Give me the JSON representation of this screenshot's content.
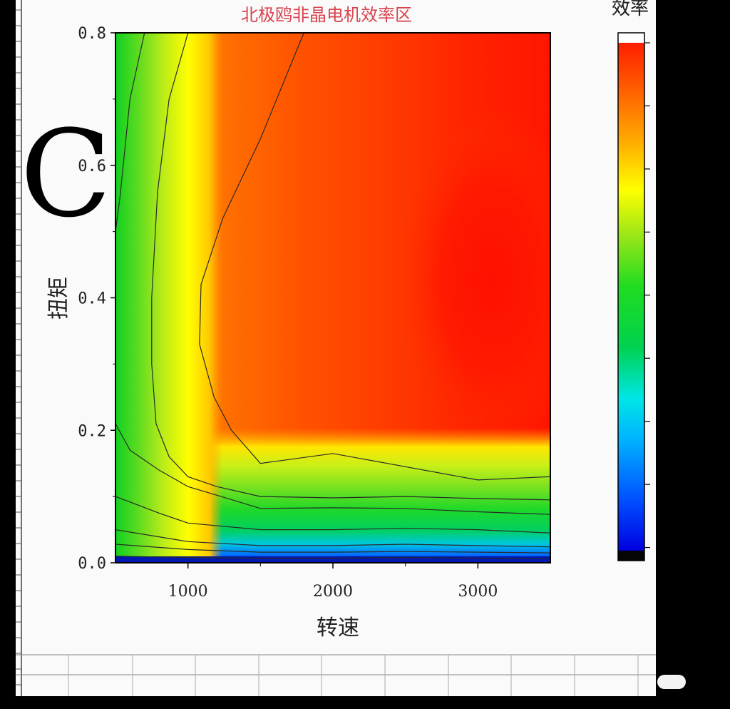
{
  "panel_label": "C",
  "colorbar_title": "效率",
  "chart_data": {
    "type": "contour",
    "title": "北极鸥非晶电机效率区",
    "xlabel": "转速",
    "ylabel": "扭矩",
    "xlim": [
      500,
      3500
    ],
    "ylim": [
      0,
      0.8
    ],
    "x_ticks": [
      1000,
      2000,
      3000
    ],
    "y_ticks": [
      0.0,
      0.2,
      0.4,
      0.6,
      0.8
    ],
    "x_tick_labels": [
      "1000",
      "2000",
      "3000"
    ],
    "y_tick_labels": [
      "0.0",
      "0.2",
      "0.4",
      "0.6",
      "0.8"
    ],
    "colormap": [
      "#000000",
      "#0000ff",
      "#0090ff",
      "#00e6e6",
      "#00d040",
      "#33e633",
      "#b4f02a",
      "#ffff00",
      "#ffa800",
      "#ff6a00",
      "#ff2000"
    ],
    "contour_lines": [
      {
        "points": [
          [
            500,
            0.01
          ],
          [
            1000,
            0.008
          ],
          [
            1500,
            0.007
          ],
          [
            2000,
            0.007
          ],
          [
            2500,
            0.008
          ],
          [
            3000,
            0.007
          ],
          [
            3500,
            0.006
          ]
        ]
      },
      {
        "points": [
          [
            500,
            0.028
          ],
          [
            1000,
            0.02
          ],
          [
            1500,
            0.016
          ],
          [
            2000,
            0.016
          ],
          [
            2500,
            0.017
          ],
          [
            3000,
            0.016
          ],
          [
            3500,
            0.015
          ]
        ]
      },
      {
        "points": [
          [
            500,
            0.05
          ],
          [
            1000,
            0.032
          ],
          [
            1500,
            0.026
          ],
          [
            2000,
            0.026
          ],
          [
            2500,
            0.028
          ],
          [
            3000,
            0.026
          ],
          [
            3500,
            0.024
          ]
        ]
      },
      {
        "points": [
          [
            500,
            0.1
          ],
          [
            800,
            0.075
          ],
          [
            1000,
            0.06
          ],
          [
            1500,
            0.05
          ],
          [
            2000,
            0.05
          ],
          [
            2500,
            0.052
          ],
          [
            3000,
            0.05
          ],
          [
            3500,
            0.045
          ]
        ]
      },
      {
        "points": [
          [
            500,
            0.21
          ],
          [
            600,
            0.17
          ],
          [
            800,
            0.14
          ],
          [
            1000,
            0.115
          ],
          [
            1200,
            0.102
          ],
          [
            1500,
            0.082
          ],
          [
            2000,
            0.083
          ],
          [
            2500,
            0.082
          ],
          [
            3000,
            0.077
          ],
          [
            3500,
            0.073
          ]
        ]
      },
      {
        "points": [
          [
            700,
            0.8
          ],
          [
            600,
            0.7
          ],
          [
            530,
            0.55
          ],
          [
            500,
            0.5
          ]
        ]
      },
      {
        "points": [
          [
            1000,
            0.8
          ],
          [
            870,
            0.7
          ],
          [
            790,
            0.56
          ],
          [
            750,
            0.4
          ],
          [
            750,
            0.3
          ],
          [
            780,
            0.21
          ],
          [
            870,
            0.16
          ],
          [
            1000,
            0.13
          ],
          [
            1200,
            0.115
          ],
          [
            1500,
            0.1
          ],
          [
            2000,
            0.098
          ],
          [
            2500,
            0.1
          ],
          [
            3000,
            0.097
          ],
          [
            3500,
            0.095
          ]
        ]
      },
      {
        "points": [
          [
            1800,
            0.8
          ],
          [
            1500,
            0.64
          ],
          [
            1240,
            0.52
          ],
          [
            1090,
            0.42
          ],
          [
            1080,
            0.33
          ],
          [
            1180,
            0.25
          ],
          [
            1300,
            0.2
          ],
          [
            1500,
            0.15
          ],
          [
            2000,
            0.165
          ],
          [
            2500,
            0.145
          ],
          [
            3000,
            0.125
          ],
          [
            3500,
            0.13
          ]
        ]
      }
    ],
    "colorbar": {
      "levels": 10,
      "labels_shown": false
    }
  }
}
